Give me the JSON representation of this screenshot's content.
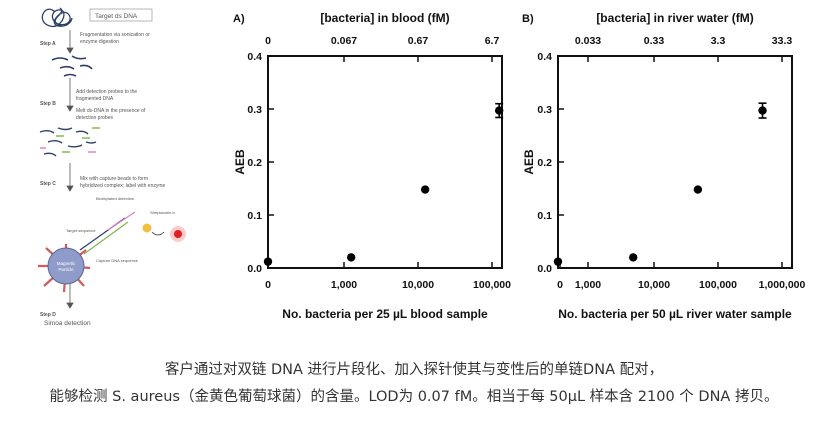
{
  "workflow": {
    "target_label": "Target ds DNA",
    "steps": [
      {
        "label": "Step A",
        "text": [
          "Fragmentation via sonication or",
          "enzyme digestion"
        ]
      },
      {
        "label": "Step B",
        "text": [
          "Add detection probes to the",
          "fragmented DNA",
          "Melt ds-DNA in the presence of",
          "detection probes"
        ]
      },
      {
        "label": "Step C",
        "text": [
          "Mix with capture beads to form",
          "hybridized complex; label with enzyme"
        ]
      },
      {
        "label": "Step D",
        "text": [
          "Simoa detection"
        ]
      }
    ],
    "bead_label": [
      "Magnetic",
      "Particle"
    ],
    "small_labels": [
      "Biotinylated detection",
      "Streptavidin-b",
      "Target sequence",
      "Capture DNA sequence"
    ]
  },
  "charts": [
    {
      "panel_label": "A)",
      "top_axis_label": "[bacteria] in blood (fM)",
      "top_ticks": [
        "0",
        "0.067",
        "0.67",
        "6.7"
      ],
      "ylabel": "AEB",
      "y_ticks": [
        "0.0",
        "0.1",
        "0.2",
        "0.3",
        "0.4"
      ],
      "xlabel": "No. bacteria per 25 µL blood sample",
      "x_ticks": [
        "0",
        "1,000",
        "10,000",
        "100,000"
      ]
    },
    {
      "panel_label": "B)",
      "top_axis_label": "[bacteria] in river water (fM)",
      "top_ticks": [
        "0.033",
        "0.33",
        "3.3",
        "33.3"
      ],
      "ylabel": "AEB",
      "y_ticks": [
        "0.0",
        "0.1",
        "0.2",
        "0.3",
        "0.4"
      ],
      "xlabel": "No. bacteria per 50 µL river water sample",
      "x_ticks": [
        "0",
        "1,000",
        "10,000",
        "100,000",
        "1,000,000"
      ]
    }
  ],
  "chart_data": [
    {
      "type": "scatter",
      "title": "",
      "xlabel": "No. bacteria per 25 µL blood sample",
      "ylabel": "AEB",
      "secondary_xlabel": "[bacteria] in blood (fM)",
      "ylim": [
        0,
        0.4
      ],
      "x": [
        0,
        1250,
        12500,
        125000
      ],
      "y": [
        0.012,
        0.02,
        0.148,
        0.297
      ],
      "error": [
        0.002,
        0.003,
        0.004,
        0.013
      ],
      "x_scale": "log",
      "grid": false
    },
    {
      "type": "scatter",
      "title": "",
      "xlabel": "No. bacteria per 50 µL river water sample",
      "ylabel": "AEB",
      "secondary_xlabel": "[bacteria] in river water (fM)",
      "ylim": [
        0,
        0.4
      ],
      "x": [
        0,
        5000,
        50000,
        500000
      ],
      "y": [
        0.012,
        0.02,
        0.148,
        0.297
      ],
      "error": [
        0.002,
        0.003,
        0.004,
        0.014
      ],
      "x_scale": "log",
      "grid": false
    }
  ],
  "caption": {
    "line1": "客户通过对双链 DNA 进行片段化、加入探针使其与变性后的单链DNA 配对，",
    "line2": "能够检测 S. aureus（金黄色葡萄球菌）的含量。LOD为 0.07 fM。相当于每 50µL 样本含 2100 个 DNA 拷贝。"
  }
}
